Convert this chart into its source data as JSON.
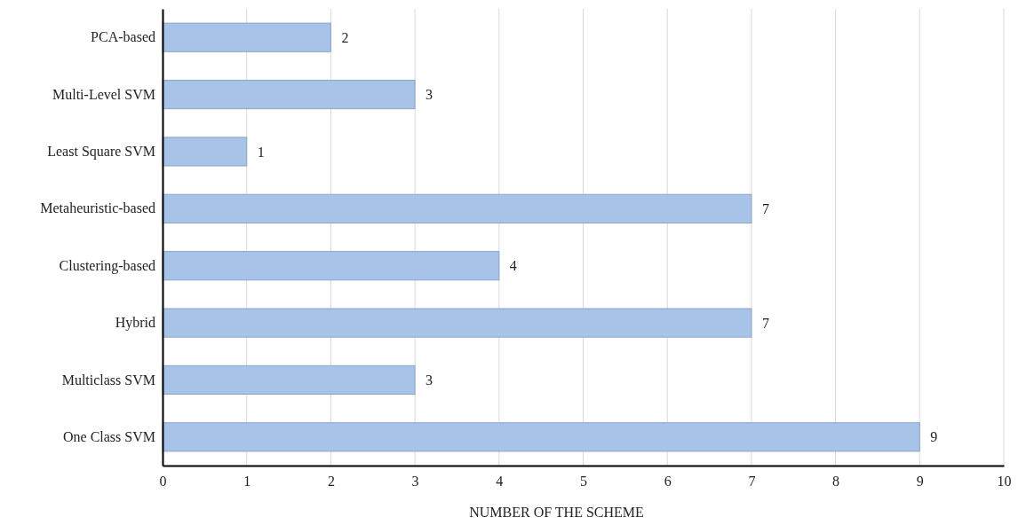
{
  "chart_data": {
    "type": "bar",
    "orientation": "horizontal",
    "xlabel": "NUMBER OF THE SCHEME",
    "categories": [
      "PCA-based",
      "Multi-Level SVM",
      "Least Square SVM",
      "Metaheuristic-based",
      "Clustering-based",
      "Hybrid",
      "Multiclass SVM",
      "One Class SVM"
    ],
    "values": [
      2,
      3,
      1,
      7,
      4,
      7,
      3,
      9
    ],
    "color": "#a7c4e8",
    "xlim": [
      0,
      10
    ],
    "xticks": [
      0,
      1,
      2,
      3,
      4,
      5,
      6,
      7,
      8,
      9,
      10
    ],
    "grid": "x",
    "data_labels": true
  }
}
